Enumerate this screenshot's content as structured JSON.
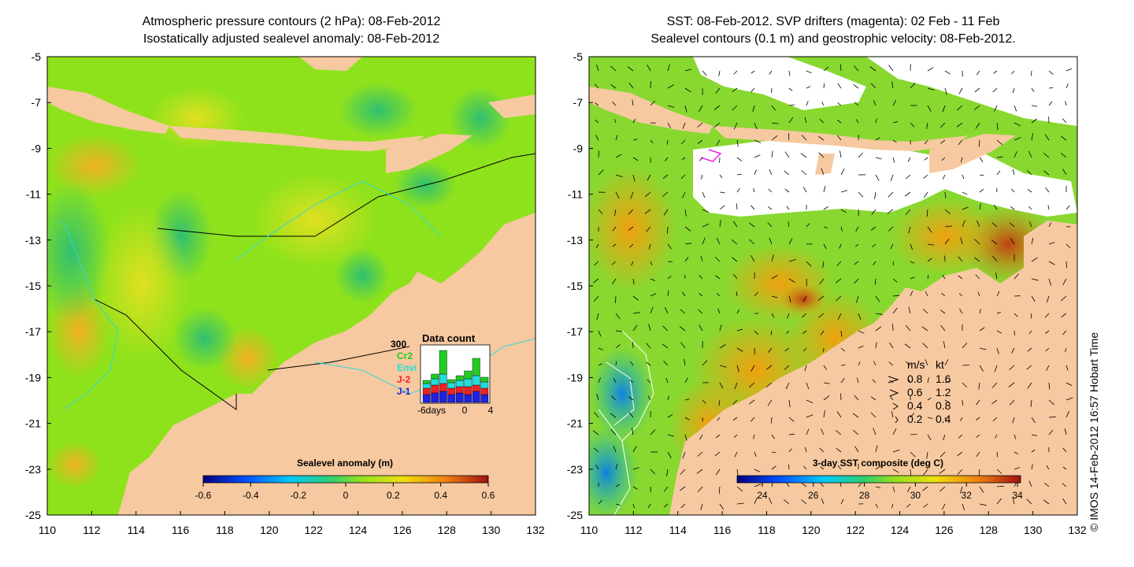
{
  "left_panel": {
    "title_line1": "Atmospheric pressure contours (2 hPa): 08-Feb-2012",
    "title_line2": "Isostatically adjusted sealevel anomaly: 08-Feb-2012",
    "colorbar": {
      "title": "Sealevel anomaly (m)",
      "ticks": [
        "-0.6",
        "-0.4",
        "-0.2",
        "0",
        "0.2",
        "0.4",
        "0.6"
      ]
    },
    "data_count": {
      "title": "Data count",
      "max_label": "300",
      "legend": [
        {
          "label": "Cr2",
          "color": "#22cc22"
        },
        {
          "label": "Envi",
          "color": "#22dddd"
        },
        {
          "label": "J-2",
          "color": "#ee2222"
        },
        {
          "label": "J-1",
          "color": "#2222dd"
        }
      ],
      "x_labels": [
        "-6days",
        "0",
        "4"
      ]
    }
  },
  "right_panel": {
    "title_line1": "SST: 08-Feb-2012. SVP drifters (magenta): 02 Feb - 11 Feb",
    "title_line2": "Sealevel contours (0.1 m) and geostrophic velocity: 08-Feb-2012.",
    "colorbar": {
      "title": "3-day SST composite (deg C)",
      "ticks": [
        "24",
        "26",
        "28",
        "30",
        "32",
        "34"
      ]
    },
    "speed_legend": {
      "header_ms": "m/s",
      "header_kt": "kt",
      "rows": [
        {
          "ms": "0.8",
          "kt": "1.6"
        },
        {
          "ms": "0.6",
          "kt": "1.2"
        },
        {
          "ms": "0.4",
          "kt": "0.8"
        },
        {
          "ms": "0.2",
          "kt": "0.4"
        }
      ]
    }
  },
  "axes": {
    "x_ticks": [
      "110",
      "112",
      "114",
      "116",
      "118",
      "120",
      "122",
      "124",
      "126",
      "128",
      "130",
      "132"
    ],
    "y_ticks": [
      "-5",
      "-7",
      "-9",
      "-11",
      "-13",
      "-15",
      "-17",
      "-19",
      "-21",
      "-23",
      "-25"
    ]
  },
  "side_label": "© IMOS 14-Feb-2012 16:57 Hobart Time",
  "colors": {
    "land": "#f7c9a0",
    "ocean_green": "#7fe01a",
    "ocean_yellow": "#e6e61a",
    "sst_orange": "#f0a010"
  }
}
